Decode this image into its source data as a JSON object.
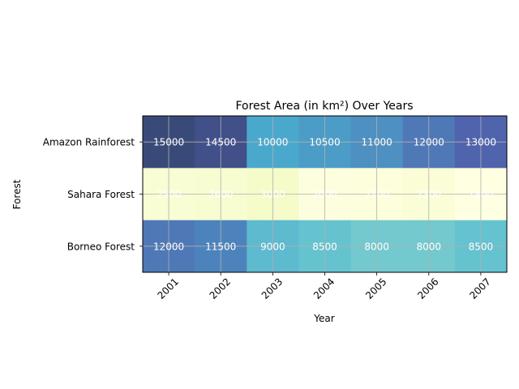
{
  "chart_data": {
    "type": "heatmap",
    "title": "Forest Area (in km²) Over Years",
    "xlabel": "Year",
    "ylabel": "Forest",
    "x": [
      "2001",
      "2002",
      "2003",
      "2004",
      "2005",
      "2006",
      "2007"
    ],
    "y": [
      "Amazon Rainforest",
      "Sahara Forest",
      "Borneo Forest"
    ],
    "values": [
      [
        15000,
        14500,
        10000,
        10500,
        11000,
        12000,
        13000
      ],
      [
        2500,
        2600,
        3000,
        2000,
        2100,
        2300,
        1800
      ],
      [
        12000,
        11500,
        9000,
        8500,
        8000,
        8000,
        8500
      ]
    ],
    "value_range": [
      1800,
      15000
    ],
    "colormap": "YlGnBu",
    "grid": true,
    "annotations": "cell values",
    "annotation_color": "#ffffff"
  }
}
